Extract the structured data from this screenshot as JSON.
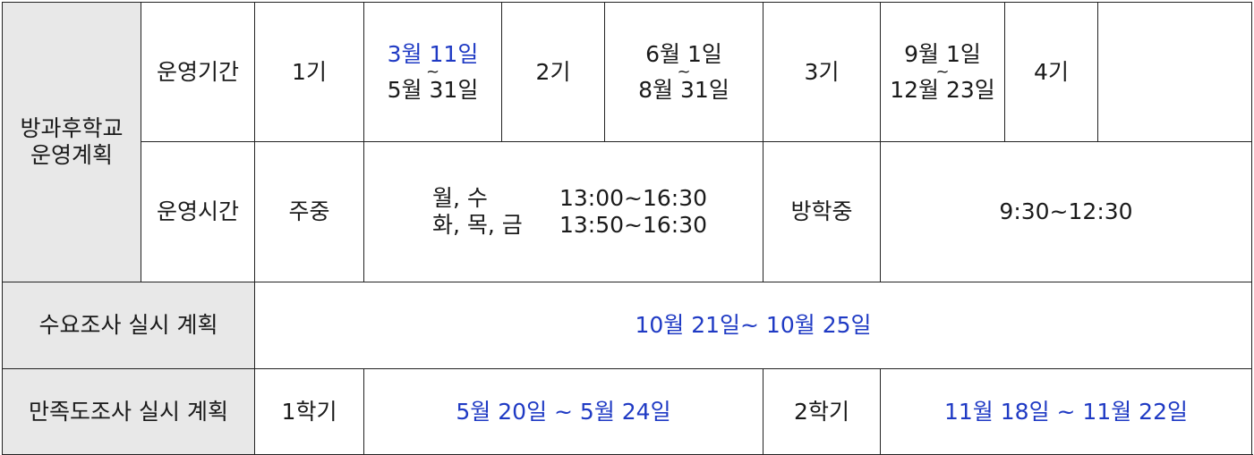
{
  "section_title": [
    "방과후학교",
    "운영계획"
  ],
  "period": {
    "label": "운영기간",
    "terms": [
      {
        "name": "1기",
        "start": "3월 11일",
        "tilde": "~",
        "end": "5월 31일",
        "highlight": true
      },
      {
        "name": "2기",
        "start": "6월 1일",
        "tilde": "~",
        "end": "8월 31일",
        "highlight": false
      },
      {
        "name": "3기",
        "start": "9월 1일",
        "tilde": "~",
        "end": "12월 23일",
        "highlight": false
      },
      {
        "name": "4기",
        "start": "",
        "tilde": "",
        "end": "",
        "highlight": false
      }
    ]
  },
  "hours": {
    "label": "운영시간",
    "weekday_label": "주중",
    "weekday_rows": [
      {
        "days": "월, 수",
        "time": "13:00~16:30"
      },
      {
        "days": "화, 목, 금",
        "time": "13:50~16:30"
      }
    ],
    "vacation_label": "방학중",
    "vacation_time": "9:30~12:30"
  },
  "survey": {
    "label": "수요조사 실시 계획",
    "dates": "10월 21일~ 10월 25일"
  },
  "satisfaction": {
    "label": "만족도조사 실시 계획",
    "semester1_label": "1학기",
    "semester1_dates": "5월 20일 ~ 5월 24일",
    "semester2_label": "2학기",
    "semester2_dates": "11월 18일 ~ 11월 22일"
  },
  "colors": {
    "highlight_text": "#1f3ac4",
    "label_background": "#e8e8e8",
    "border": "#222222"
  }
}
